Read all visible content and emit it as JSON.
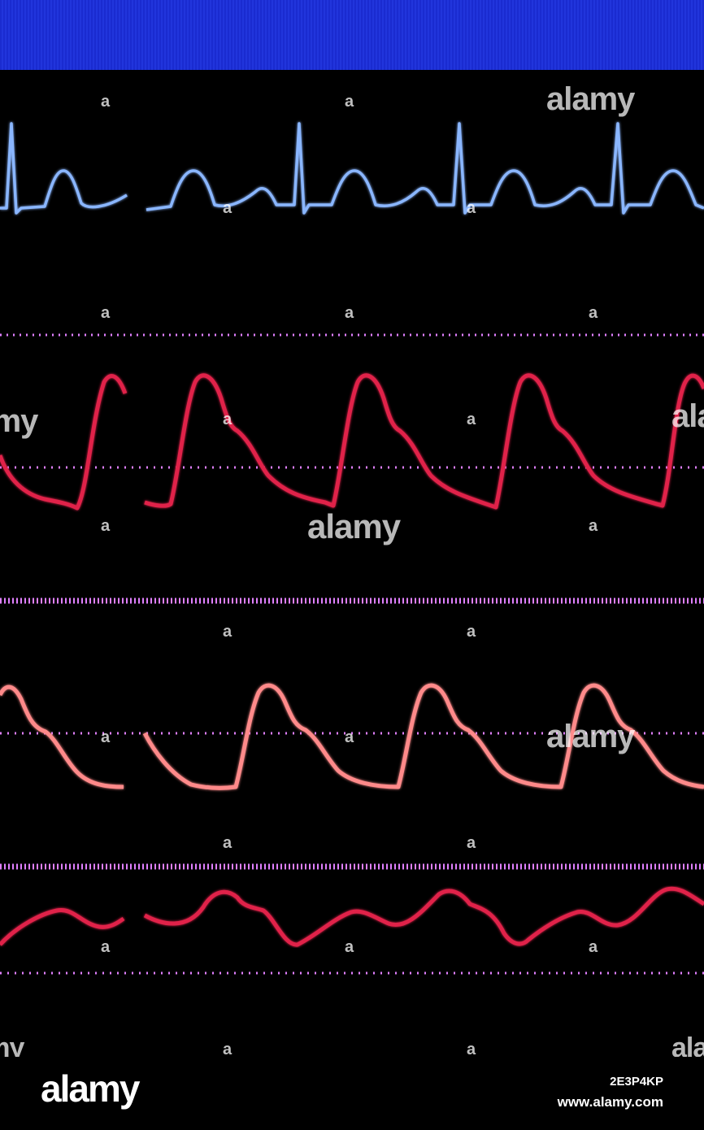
{
  "monitor": {
    "background": "#000000",
    "header_bar_color": "#2135dc",
    "colors": {
      "ecg": "#8ab6ff",
      "arterial": "#e0204a",
      "secondary_pressure": "#ff8a8a",
      "third_pressure": "#e0204a",
      "reference_line": "#e080ff"
    },
    "waveforms": [
      {
        "id": "ecg",
        "label": "ECG lead trace",
        "beats": 4
      },
      {
        "id": "arterial-pressure",
        "label": "Arterial pressure trace",
        "beats": 5
      },
      {
        "id": "secondary-pressure",
        "label": "Secondary pressure trace",
        "beats": 4
      },
      {
        "id": "third-pressure",
        "label": "Low-amplitude pressure trace",
        "beats": 4
      }
    ]
  },
  "watermark": {
    "text": "alamy",
    "letter": "a",
    "brand": "alamy",
    "image_id": "2E3P4KP",
    "url": "www.alamy.com"
  }
}
